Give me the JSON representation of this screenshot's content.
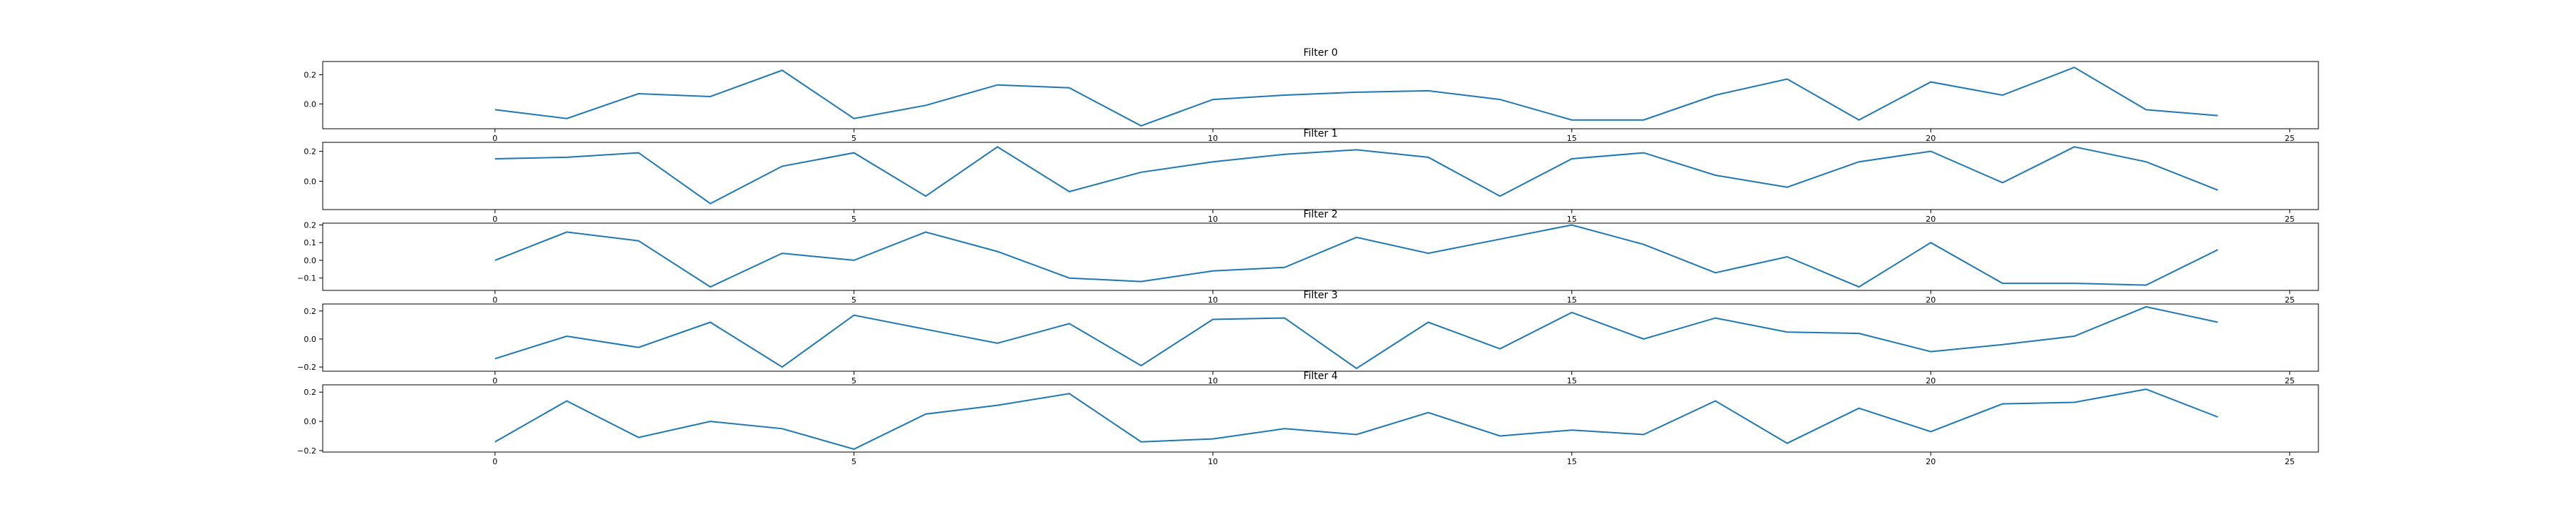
{
  "chart_data": [
    {
      "type": "line",
      "title": "Filter 0",
      "x": [
        0,
        1,
        2,
        3,
        4,
        5,
        6,
        7,
        8,
        9,
        10,
        11,
        12,
        13,
        14,
        15,
        16,
        17,
        18,
        19,
        20,
        21,
        22,
        23,
        24
      ],
      "series": [
        {
          "values": [
            -0.04,
            -0.1,
            0.07,
            0.05,
            0.23,
            -0.1,
            -0.01,
            0.13,
            0.11,
            -0.15,
            0.03,
            0.06,
            0.08,
            0.09,
            0.03,
            -0.11,
            -0.11,
            0.06,
            0.17,
            -0.11,
            0.15,
            0.06,
            0.25,
            -0.04,
            -0.08
          ]
        }
      ],
      "xlim": [
        -2.4,
        25.4
      ],
      "ylim": [
        -0.17,
        0.29
      ],
      "xticks": [
        0,
        5,
        10,
        15,
        20,
        25
      ],
      "yticks": [
        0.0,
        0.2
      ],
      "ytick_labels": [
        "0.0",
        "0.2"
      ],
      "colors": {
        "line": "#1f77b4"
      }
    },
    {
      "type": "line",
      "title": "Filter 1",
      "x": [
        0,
        1,
        2,
        3,
        4,
        5,
        6,
        7,
        8,
        9,
        10,
        11,
        12,
        13,
        14,
        15,
        16,
        17,
        18,
        19,
        20,
        21,
        22,
        23,
        24
      ],
      "series": [
        {
          "values": [
            0.15,
            0.16,
            0.19,
            -0.15,
            0.1,
            0.19,
            -0.1,
            0.23,
            -0.07,
            0.06,
            0.13,
            0.18,
            0.21,
            0.16,
            -0.1,
            0.15,
            0.19,
            0.04,
            -0.04,
            0.13,
            0.2,
            -0.01,
            0.23,
            0.13,
            -0.06
          ]
        }
      ],
      "xlim": [
        -2.4,
        25.4
      ],
      "ylim": [
        -0.19,
        0.26
      ],
      "xticks": [
        0,
        5,
        10,
        15,
        20,
        25
      ],
      "yticks": [
        0.0,
        0.2
      ],
      "ytick_labels": [
        "0.0",
        "0.2"
      ],
      "colors": {
        "line": "#1f77b4"
      }
    },
    {
      "type": "line",
      "title": "Filter 2",
      "x": [
        0,
        1,
        2,
        3,
        4,
        5,
        6,
        7,
        8,
        9,
        10,
        11,
        12,
        13,
        14,
        15,
        16,
        17,
        18,
        19,
        20,
        21,
        22,
        23,
        24
      ],
      "series": [
        {
          "values": [
            0.0,
            0.16,
            0.11,
            -0.15,
            0.04,
            0.0,
            0.16,
            0.05,
            -0.1,
            -0.12,
            -0.06,
            -0.04,
            0.13,
            0.04,
            0.12,
            0.2,
            0.09,
            -0.07,
            0.02,
            -0.15,
            0.1,
            -0.13,
            -0.13,
            -0.14,
            0.06
          ]
        }
      ],
      "xlim": [
        -2.4,
        25.4
      ],
      "ylim": [
        -0.17,
        0.21
      ],
      "xticks": [
        0,
        5,
        10,
        15,
        20,
        25
      ],
      "yticks": [
        -0.1,
        0.0,
        0.1,
        0.2
      ],
      "ytick_labels": [
        "−0.1",
        "0.0",
        "0.1",
        "0.2"
      ],
      "colors": {
        "line": "#1f77b4"
      }
    },
    {
      "type": "line",
      "title": "Filter 3",
      "x": [
        0,
        1,
        2,
        3,
        4,
        5,
        6,
        7,
        8,
        9,
        10,
        11,
        12,
        13,
        14,
        15,
        16,
        17,
        18,
        19,
        20,
        21,
        22,
        23,
        24
      ],
      "series": [
        {
          "values": [
            -0.14,
            0.02,
            -0.06,
            0.12,
            -0.2,
            0.17,
            0.07,
            -0.03,
            0.11,
            -0.19,
            0.14,
            0.15,
            -0.21,
            0.12,
            -0.07,
            0.19,
            0.0,
            0.15,
            0.05,
            0.04,
            -0.09,
            -0.04,
            0.02,
            0.23,
            0.12
          ]
        }
      ],
      "xlim": [
        -2.4,
        25.4
      ],
      "ylim": [
        -0.23,
        0.25
      ],
      "xticks": [
        0,
        5,
        10,
        15,
        20,
        25
      ],
      "yticks": [
        -0.2,
        0.0,
        0.2
      ],
      "ytick_labels": [
        "−0.2",
        "0.0",
        "0.2"
      ],
      "colors": {
        "line": "#1f77b4"
      }
    },
    {
      "type": "line",
      "title": "Filter 4",
      "x": [
        0,
        1,
        2,
        3,
        4,
        5,
        6,
        7,
        8,
        9,
        10,
        11,
        12,
        13,
        14,
        15,
        16,
        17,
        18,
        19,
        20,
        21,
        22,
        23,
        24
      ],
      "series": [
        {
          "values": [
            -0.14,
            0.14,
            -0.11,
            0.0,
            -0.05,
            -0.19,
            0.05,
            0.11,
            0.19,
            -0.14,
            -0.12,
            -0.05,
            -0.09,
            0.06,
            -0.1,
            -0.06,
            -0.09,
            0.14,
            -0.15,
            0.09,
            -0.07,
            0.12,
            0.13,
            0.22,
            0.03
          ]
        }
      ],
      "xlim": [
        -2.4,
        25.4
      ],
      "ylim": [
        -0.21,
        0.25
      ],
      "xticks": [
        0,
        5,
        10,
        15,
        20,
        25
      ],
      "yticks": [
        -0.2,
        0.0,
        0.2
      ],
      "ytick_labels": [
        "−0.2",
        "0.0",
        "0.2"
      ],
      "colors": {
        "line": "#1f77b4"
      }
    }
  ]
}
